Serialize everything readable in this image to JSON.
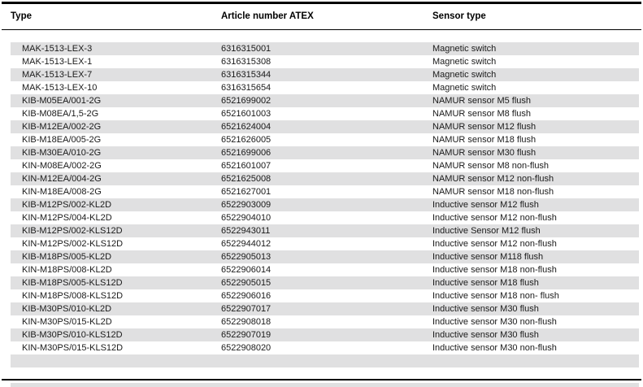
{
  "colors": {
    "row_stripe": "#e0e0e1",
    "text": "#1a1a1a",
    "rule": "#000000",
    "background": "#ffffff"
  },
  "table": {
    "headers": {
      "type": "Type",
      "article_number": "Article number ATEX",
      "sensor_type": "Sensor type"
    },
    "rows": [
      {
        "type": "MAK-1513-LEX-3",
        "article_number": "6316315001",
        "sensor_type": "Magnetic switch"
      },
      {
        "type": "MAK-1513-LEX-1",
        "article_number": "6316315308",
        "sensor_type": "Magnetic switch"
      },
      {
        "type": "MAK-1513-LEX-7",
        "article_number": "6316315344",
        "sensor_type": "Magnetic switch"
      },
      {
        "type": "MAK-1513-LEX-10",
        "article_number": "6316315654",
        "sensor_type": "Magnetic switch"
      },
      {
        "type": "KIB-M05EA/001-2G",
        "article_number": "6521699002",
        "sensor_type": "NAMUR sensor M5 flush"
      },
      {
        "type": "KIB-M08EA/1,5-2G",
        "article_number": "6521601003",
        "sensor_type": "NAMUR sensor M8 flush"
      },
      {
        "type": "KIB-M12EA/002-2G",
        "article_number": "6521624004",
        "sensor_type": "NAMUR sensor M12 flush"
      },
      {
        "type": "KIB-M18EA/005-2G",
        "article_number": "6521626005",
        "sensor_type": "NAMUR sensor M18 flush"
      },
      {
        "type": "KIB-M30EA/010-2G",
        "article_number": "6521699006",
        "sensor_type": "NAMUR sensor M30 flush"
      },
      {
        "type": "KIN-M08EA/002-2G",
        "article_number": "6521601007",
        "sensor_type": "NAMUR sensor M8 non-flush"
      },
      {
        "type": "KIN-M12EA/004-2G",
        "article_number": "6521625008",
        "sensor_type": "NAMUR sensor M12 non-flush"
      },
      {
        "type": "KIN-M18EA/008-2G",
        "article_number": "6521627001",
        "sensor_type": "NAMUR sensor M18 non-flush"
      },
      {
        "type": "KIB-M12PS/002-KL2D",
        "article_number": "6522903009",
        "sensor_type": "Inductive sensor M12 flush"
      },
      {
        "type": "KIN-M12PS/004-KL2D",
        "article_number": "6522904010",
        "sensor_type": "Inductive sensor M12 non-flush"
      },
      {
        "type": "KIB-M12PS/002-KLS12D",
        "article_number": "6522943011",
        "sensor_type": "Inductive Sensor M12 flush"
      },
      {
        "type": "KIN-M12PS/002-KLS12D",
        "article_number": "6522944012",
        "sensor_type": "Inductive sensor M12 non-flush"
      },
      {
        "type": "KIB-M18PS/005-KL2D",
        "article_number": "6522905013",
        "sensor_type": "Inductive sensor M118 flush"
      },
      {
        "type": "KIN-M18PS/008-KL2D",
        "article_number": "6522906014",
        "sensor_type": "Inductive sensor M18 non-flush"
      },
      {
        "type": "KIB-M18PS/005-KLS12D",
        "article_number": "6522905015",
        "sensor_type": "Inductive sensor M18 flush"
      },
      {
        "type": "KIN-M18PS/008-KLS12D",
        "article_number": "6522906016",
        "sensor_type": "Inductive sensor M18 non- flush"
      },
      {
        "type": "KIB-M30PS/010-KL2D",
        "article_number": "6522907017",
        "sensor_type": "Inductive sensor M30 flush"
      },
      {
        "type": "KIN-M30PS/015-KL2D",
        "article_number": "6522908018",
        "sensor_type": "Inductive sensor M30 non-flush"
      },
      {
        "type": "KIB-M30PS/010-KLS12D",
        "article_number": "6522907019",
        "sensor_type": "Inductive sensor M30 flush"
      },
      {
        "type": "KIN-M30PS/015-KLS12D",
        "article_number": "6522908020",
        "sensor_type": "Inductive sensor M30 non-flush"
      },
      {
        "type": "",
        "article_number": "",
        "sensor_type": ""
      }
    ]
  }
}
